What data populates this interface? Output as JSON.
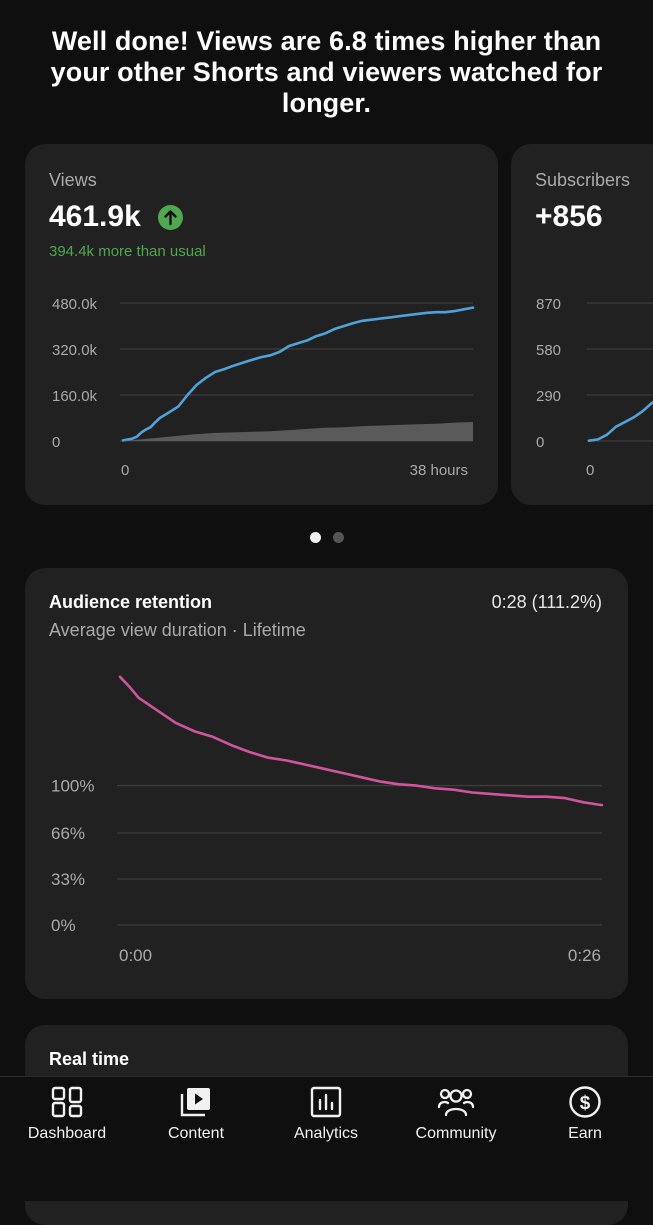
{
  "headline": "Well done! Views are 6.8 times higher than your other Shorts and viewers watched for longer.",
  "colors": {
    "accent_blue": "#4fa3d9",
    "positive_green": "#4fa84f",
    "retention_pink": "#d1559e",
    "baseline_gray": "#5a5a5a"
  },
  "views_card": {
    "label": "Views",
    "value": "461.9k",
    "trend_icon": "arrow-up-circle-icon",
    "delta_text": "394.4k more than usual",
    "chart_data": {
      "type": "line",
      "x_tick_labels": [
        "0",
        "38 hours"
      ],
      "y_tick_labels": [
        "480.0k",
        "320.0k",
        "160.0k",
        "0"
      ],
      "y_ticks": [
        480000,
        320000,
        160000,
        0
      ],
      "ylim": [
        0,
        480000
      ],
      "xlim": [
        0,
        38
      ],
      "grid": true,
      "series": [
        {
          "kind": "line",
          "color": "#4fa3d9",
          "x": [
            0,
            1,
            1.5,
            2,
            2.5,
            3,
            3.5,
            4,
            5,
            6,
            7,
            8,
            9,
            10,
            11,
            12,
            13,
            14,
            15,
            16,
            17,
            18,
            19,
            20,
            21,
            22,
            23,
            24,
            25,
            26,
            27,
            28,
            29,
            30,
            31,
            32,
            33,
            34,
            35,
            36,
            37,
            38
          ],
          "y": [
            2000,
            8000,
            15000,
            30000,
            40000,
            48000,
            65000,
            80000,
            100000,
            120000,
            160000,
            195000,
            220000,
            240000,
            250000,
            262000,
            272000,
            282000,
            292000,
            298000,
            310000,
            330000,
            340000,
            350000,
            365000,
            375000,
            390000,
            400000,
            410000,
            418000,
            422000,
            426000,
            430000,
            434000,
            438000,
            442000,
            446000,
            448000,
            448000,
            452000,
            458000,
            464000
          ]
        },
        {
          "kind": "area",
          "color": "#5a5a5a",
          "x": [
            0,
            2,
            4,
            6,
            8,
            10,
            12,
            14,
            16,
            18,
            20,
            22,
            24,
            26,
            28,
            30,
            32,
            34,
            36,
            38
          ],
          "y": [
            0,
            6000,
            12000,
            18000,
            24000,
            28000,
            30000,
            32000,
            34000,
            38000,
            42000,
            46000,
            48000,
            52000,
            54000,
            56000,
            58000,
            60000,
            64000,
            66000
          ]
        }
      ]
    }
  },
  "subscribers_card": {
    "label": "Subscribers",
    "value": "+856",
    "chart_data": {
      "type": "line",
      "x_tick_labels": [
        "0"
      ],
      "y_tick_labels": [
        "870",
        "580",
        "290",
        "0"
      ],
      "y_ticks": [
        870,
        580,
        290,
        0
      ],
      "ylim": [
        0,
        870
      ],
      "grid": true,
      "series": [
        {
          "kind": "line",
          "color": "#4fa3d9",
          "x": [
            0,
            1,
            2,
            3,
            4,
            5,
            6,
            7,
            8
          ],
          "y": [
            2,
            10,
            40,
            90,
            120,
            150,
            190,
            240,
            275
          ]
        }
      ]
    }
  },
  "carousel": {
    "pages": 2,
    "active_index": 0
  },
  "retention_card": {
    "title": "Audience retention",
    "value": "0:28 (111.2%)",
    "subtitle": "Average view duration · Lifetime",
    "chart_data": {
      "type": "line",
      "x_tick_labels": [
        "0:00",
        "0:26"
      ],
      "y_tick_labels": [
        "100%",
        "66%",
        "33%",
        "0%"
      ],
      "y_ticks": [
        100,
        66,
        33,
        0
      ],
      "ylim": [
        0,
        180
      ],
      "xlim": [
        0,
        26
      ],
      "grid": true,
      "series": [
        {
          "kind": "line",
          "color": "#d1559e",
          "x": [
            0,
            0.5,
            1,
            2,
            3,
            4,
            5,
            6,
            7,
            8,
            9,
            10,
            11,
            12,
            13,
            14,
            15,
            16,
            17,
            18,
            19,
            20,
            21,
            22,
            23,
            24,
            25,
            26
          ],
          "y": [
            178,
            171,
            163,
            154,
            145,
            139,
            135,
            129,
            124,
            120,
            118,
            115,
            112,
            109,
            106,
            103,
            101,
            100,
            98,
            97,
            95,
            94,
            93,
            92,
            92,
            91,
            88,
            86
          ]
        }
      ]
    }
  },
  "realtime_card": {
    "title": "Real time"
  },
  "bottom_nav": {
    "items": [
      {
        "label": "Dashboard",
        "icon": "dashboard-icon"
      },
      {
        "label": "Content",
        "icon": "content-icon"
      },
      {
        "label": "Analytics",
        "icon": "analytics-icon"
      },
      {
        "label": "Community",
        "icon": "community-icon"
      },
      {
        "label": "Earn",
        "icon": "earn-icon"
      }
    ]
  }
}
